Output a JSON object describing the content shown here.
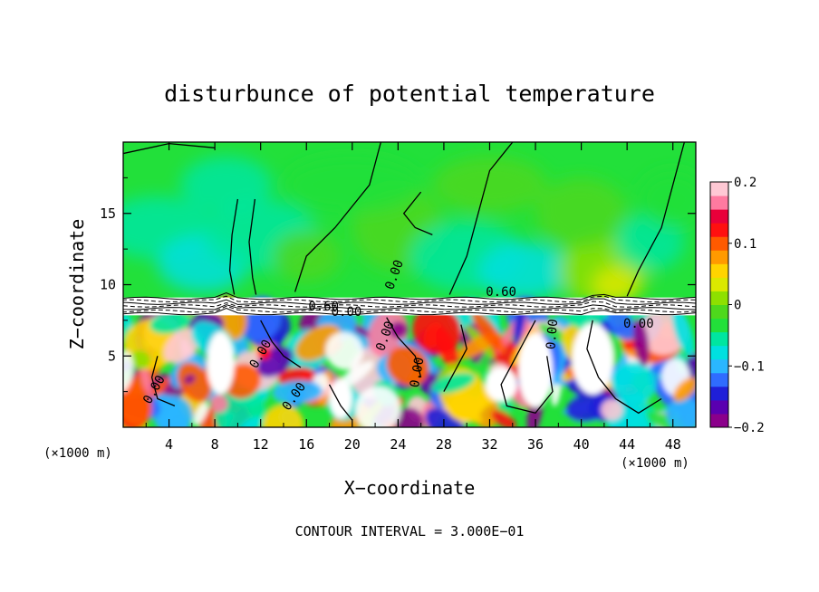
{
  "chart_data": {
    "type": "heatmap",
    "title": "disturbunce of potential temperature",
    "xlabel": "X−coordinate",
    "ylabel": "Z−coordinate",
    "x_unit": "(×1000 m)",
    "z_unit": "(×1000 m)",
    "xlim": [
      0,
      50
    ],
    "ylim": [
      0,
      20
    ],
    "x_ticks": [
      4,
      8,
      12,
      16,
      20,
      24,
      28,
      32,
      36,
      40,
      44,
      48
    ],
    "y_ticks": [
      5,
      10,
      15
    ],
    "colorbar": {
      "range": [
        -0.2,
        0.2
      ],
      "ticks": [
        0.2,
        0.1,
        0,
        -0.1,
        -0.2
      ],
      "tick_labels": [
        "0.2",
        "0.1",
        "0",
        "−0.1",
        "−0.2"
      ],
      "colors": [
        "#8b008b",
        "#5a00b0",
        "#1f1fd8",
        "#2f6cff",
        "#2ab6ff",
        "#00e0e0",
        "#00e6a0",
        "#22e03a",
        "#4ed81c",
        "#8ee000",
        "#dbe800",
        "#ffd400",
        "#ff9a00",
        "#ff5a00",
        "#ff1010",
        "#e8003a",
        "#ff7aa0",
        "#ffc8d4"
      ]
    },
    "contour_labels": [
      "0.00",
      "0.00",
      "0.00",
      "0.00",
      "0.00",
      "0.00",
      "0.60",
      "0.60",
      "0.00",
      "0.00",
      "0.00"
    ],
    "footer": "CONTOUR INTERVAL = 3.000E−01"
  }
}
